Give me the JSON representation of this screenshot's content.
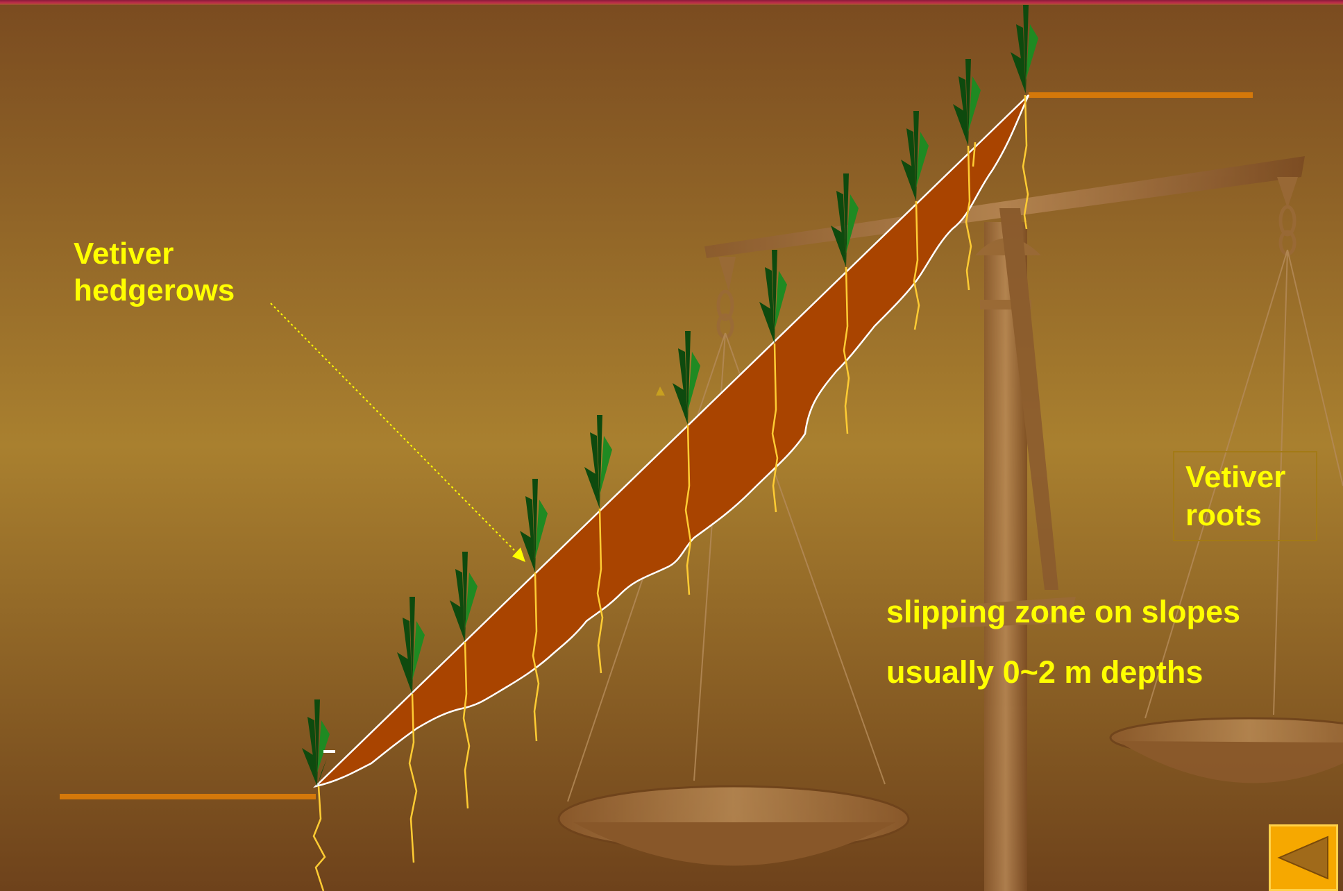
{
  "labels": {
    "hedgerows": [
      "Vetiver",
      "hedgerows"
    ],
    "roots": [
      "Vetiver",
      "roots"
    ],
    "slipping_zone": "slipping zone on slopes",
    "depths": "usually 0~2 m depths"
  },
  "colors": {
    "background_dark": "#6f431b",
    "background_light": "#a87c2e",
    "slip_zone_fill": "#a94400",
    "ground_line": "#d4780a",
    "label_text": "#ffff00",
    "root_color": "#ffcc33",
    "grass_dark": "#0e4a0e",
    "grass_light": "#1f8a22",
    "nav_button": "#f6a800"
  },
  "icons": {
    "back_button": "triangle-left-icon",
    "background": "balance-scale-illustration"
  }
}
